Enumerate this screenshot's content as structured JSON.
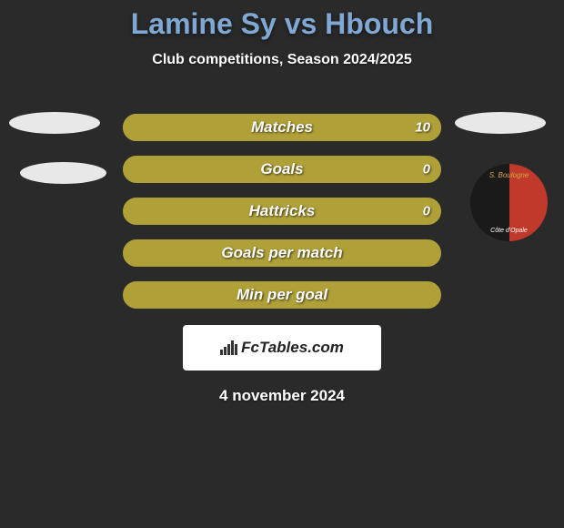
{
  "title": {
    "text": "Lamine Sy vs Hbouch",
    "fontsize": 32,
    "color": "#7fa8d4"
  },
  "subtitle": {
    "text": "Club competitions, Season 2024/2025",
    "fontsize": 16,
    "color": "#ffffff"
  },
  "bars": [
    {
      "label": "Matches",
      "value_right": "10",
      "fill_pct": 100,
      "bg_color": "#b0a038",
      "fill_color": "#b0a038"
    },
    {
      "label": "Goals",
      "value_right": "0",
      "fill_pct": 0,
      "bg_color": "#b0a038",
      "fill_color": "#b0a038"
    },
    {
      "label": "Hattricks",
      "value_right": "0",
      "fill_pct": 0,
      "bg_color": "#b0a038",
      "fill_color": "#b0a038"
    },
    {
      "label": "Goals per match",
      "value_right": "",
      "fill_pct": 0,
      "bg_color": "#b0a038",
      "fill_color": "#b0a038"
    },
    {
      "label": "Min per goal",
      "value_right": "",
      "fill_pct": 0,
      "bg_color": "#b0a038",
      "fill_color": "#b0a038"
    }
  ],
  "bar_label_color": "#ffffff",
  "bar_label_fontsize": 17,
  "bar_value_color": "#ffffff",
  "bar_value_fontsize": 15,
  "left_ellipses_color": "#e8e8e8",
  "tr_ellipse_color": "#e8e8e8",
  "badge": {
    "bg_left": "#1a1a1a",
    "bg_right": "#c0392b",
    "text_top": "S. Boulogne",
    "text_top_color": "#d4a84a",
    "text_bottom": "Côte d'Opale"
  },
  "logo": {
    "text": "FcTables.com",
    "box_bg": "#ffffff",
    "text_color": "#222222",
    "fontsize": 17,
    "icon_bars": [
      6,
      9,
      12,
      16,
      12
    ]
  },
  "date": {
    "text": "4 november 2024",
    "fontsize": 17,
    "color": "#ffffff"
  },
  "background_color": "#2a2a2a"
}
